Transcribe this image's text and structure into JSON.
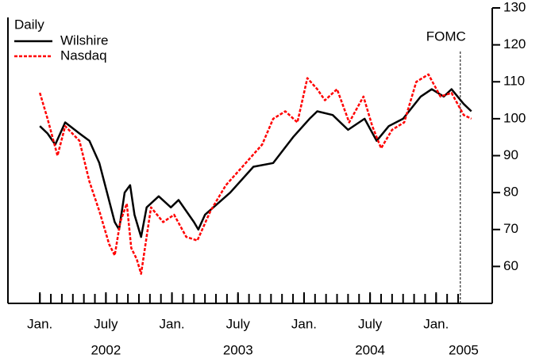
{
  "chart_data": {
    "type": "line",
    "subtitle": "Daily",
    "xlim": [
      -2.9,
      41.1
    ],
    "ylim": [
      50,
      130
    ],
    "yticks": [
      60,
      70,
      80,
      90,
      100,
      110,
      120,
      130
    ],
    "xticks": [
      {
        "value": 0,
        "label": "Jan."
      },
      {
        "value": 6,
        "label": "July"
      },
      {
        "value": 12,
        "label": "Jan."
      },
      {
        "value": 18,
        "label": "July"
      },
      {
        "value": 24,
        "label": "Jan."
      },
      {
        "value": 30,
        "label": "July"
      },
      {
        "value": 36,
        "label": "Jan."
      }
    ],
    "xminorticks": [
      0,
      1,
      2,
      3,
      4,
      5,
      6,
      7,
      8,
      9,
      10,
      11,
      12,
      13,
      14,
      15,
      16,
      17,
      18,
      19,
      20,
      21,
      22,
      23,
      24,
      25,
      26,
      27,
      28,
      29,
      30,
      31,
      32,
      33,
      34,
      35,
      36,
      37,
      38
    ],
    "year_labels": [
      {
        "value": 6,
        "label": "2002"
      },
      {
        "value": 18,
        "label": "2003"
      },
      {
        "value": 30,
        "label": "2004"
      },
      {
        "value": 38.5,
        "label": "2005"
      }
    ],
    "annotations": [
      {
        "label": "FOMC",
        "x": 38.2
      }
    ],
    "series": [
      {
        "name": "Wilshire",
        "color": "#000000",
        "x": [
          0,
          0.7,
          1.4,
          2.3,
          3.6,
          4.5,
          5.4,
          6.1,
          6.8,
          7.2,
          7.7,
          8.2,
          8.6,
          9.2,
          9.7,
          10.8,
          11.9,
          12.6,
          14,
          14.4,
          15,
          17.3,
          19.4,
          21.2,
          23,
          24.5,
          25.2,
          26.6,
          28,
          29.5,
          30.6,
          31.7,
          33,
          34.6,
          35.6,
          36.7,
          37.4,
          38.5,
          39.2
        ],
        "values": [
          98,
          96,
          93,
          99,
          96,
          94,
          88,
          80,
          72,
          70,
          80,
          82,
          74,
          68,
          76,
          79,
          76,
          78,
          72,
          70,
          74,
          80,
          87,
          88,
          95,
          100,
          102,
          101,
          97,
          100,
          94,
          98,
          100,
          106,
          108,
          106,
          108,
          104,
          102
        ]
      },
      {
        "name": "Nasdaq",
        "color": "#ff0000",
        "x": [
          0,
          0.7,
          1.6,
          2.3,
          3.6,
          4.5,
          5.4,
          6.3,
          6.8,
          7.3,
          7.9,
          8.3,
          8.8,
          9.2,
          10.1,
          11.2,
          12.2,
          13.3,
          14.3,
          15.5,
          16.9,
          18.7,
          20.2,
          21.2,
          22.3,
          23.4,
          24.3,
          25.2,
          25.9,
          27,
          28.1,
          29.4,
          30.2,
          31,
          32,
          33.1,
          34.2,
          35.3,
          36.4,
          37.4,
          38.5,
          39.2
        ],
        "values": [
          107,
          100,
          90,
          98,
          94,
          83,
          75,
          66,
          63,
          72,
          77,
          65,
          62,
          58,
          76,
          72,
          74,
          68,
          67,
          75,
          82,
          88,
          93,
          100,
          102,
          99,
          111,
          108,
          105,
          108,
          99,
          106,
          98,
          92,
          97,
          99,
          110,
          112,
          106,
          107,
          101,
          100
        ]
      }
    ]
  }
}
